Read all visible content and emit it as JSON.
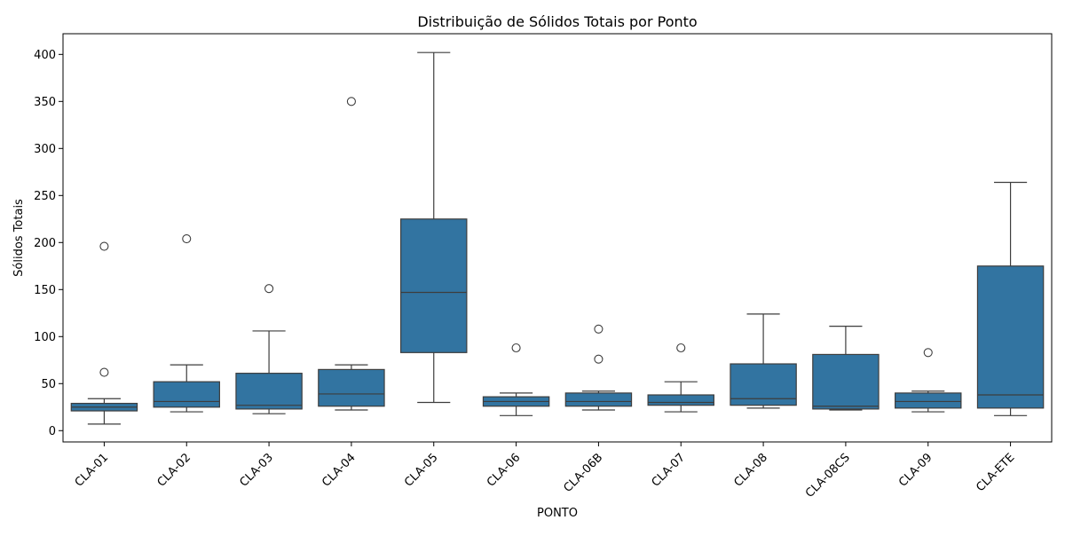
{
  "chart_data": {
    "type": "box",
    "title": "Distribuição de Sólidos Totais por Ponto",
    "xlabel": "PONTO",
    "ylabel": "Sólidos Totais",
    "ylim": [
      -12,
      422
    ],
    "yticks": [
      0,
      50,
      100,
      150,
      200,
      250,
      300,
      350,
      400
    ],
    "grid": false,
    "legend": "none",
    "box_color": "#3274a1",
    "line_color": "#3d3d3d",
    "categories": [
      "CLA-01",
      "CLA-02",
      "CLA-03",
      "CLA-04",
      "CLA-05",
      "CLA-06",
      "CLA-06B",
      "CLA-07",
      "CLA-08",
      "CLA-08CS",
      "CLA-09",
      "CLA-ETE"
    ],
    "boxes": [
      {
        "category": "CLA-01",
        "whisker_low": 7,
        "q1": 21,
        "median": 25,
        "q3": 29,
        "whisker_high": 34,
        "outliers": [
          62,
          196
        ]
      },
      {
        "category": "CLA-02",
        "whisker_low": 20,
        "q1": 25,
        "median": 31,
        "q3": 52,
        "whisker_high": 70,
        "outliers": [
          204
        ]
      },
      {
        "category": "CLA-03",
        "whisker_low": 18,
        "q1": 23,
        "median": 27,
        "q3": 61,
        "whisker_high": 106,
        "outliers": [
          151
        ]
      },
      {
        "category": "CLA-04",
        "whisker_low": 22,
        "q1": 26,
        "median": 39,
        "q3": 65,
        "whisker_high": 70,
        "outliers": [
          350
        ]
      },
      {
        "category": "CLA-05",
        "whisker_low": 30,
        "q1": 83,
        "median": 147,
        "q3": 225,
        "whisker_high": 402,
        "outliers": []
      },
      {
        "category": "CLA-06",
        "whisker_low": 16,
        "q1": 26,
        "median": 31,
        "q3": 36,
        "whisker_high": 40,
        "outliers": [
          88
        ]
      },
      {
        "category": "CLA-06B",
        "whisker_low": 22,
        "q1": 26,
        "median": 31,
        "q3": 40,
        "whisker_high": 42,
        "outliers": [
          76,
          108
        ]
      },
      {
        "category": "CLA-07",
        "whisker_low": 20,
        "q1": 27,
        "median": 30,
        "q3": 38,
        "whisker_high": 52,
        "outliers": [
          88
        ]
      },
      {
        "category": "CLA-08",
        "whisker_low": 24,
        "q1": 27,
        "median": 34,
        "q3": 71,
        "whisker_high": 124,
        "outliers": []
      },
      {
        "category": "CLA-08CS",
        "whisker_low": 22,
        "q1": 23,
        "median": 26,
        "q3": 81,
        "whisker_high": 111,
        "outliers": []
      },
      {
        "category": "CLA-09",
        "whisker_low": 20,
        "q1": 24,
        "median": 31,
        "q3": 40,
        "whisker_high": 42,
        "outliers": [
          83
        ]
      },
      {
        "category": "CLA-ETE",
        "whisker_low": 16,
        "q1": 24,
        "median": 38,
        "q3": 175,
        "whisker_high": 264,
        "outliers": []
      }
    ]
  }
}
